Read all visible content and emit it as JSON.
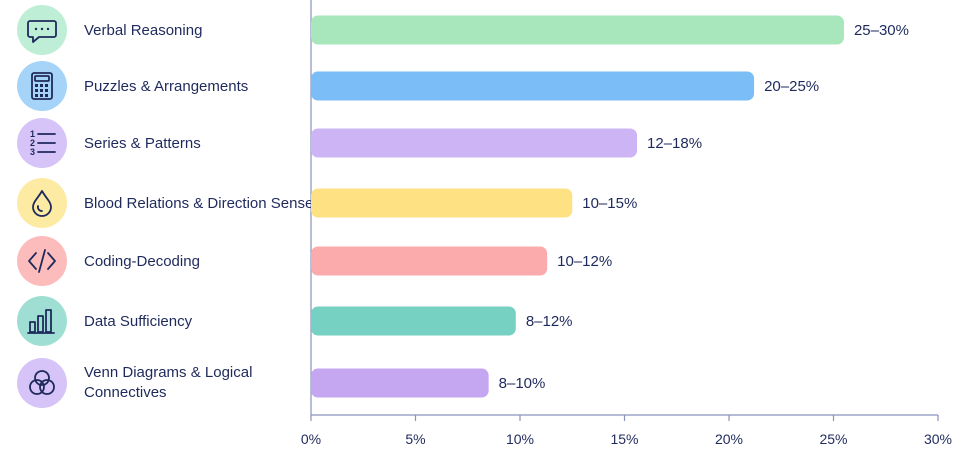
{
  "chart_data": {
    "type": "bar",
    "orientation": "horizontal",
    "title": "",
    "xlabel": "",
    "ylabel": "",
    "xlim": [
      0,
      30
    ],
    "ticks": [
      "0%",
      "5%",
      "10%",
      "15%",
      "20%",
      "25%",
      "30%"
    ],
    "grid": false,
    "legend": "none",
    "categories": [
      "Verbal Reasoning",
      "Puzzles & Arrangements",
      "Series & Patterns",
      "Blood Relations & Direction Sense",
      "Coding-Decoding",
      "Data Sufficiency",
      "Venn Diagrams & Logical Connectives"
    ],
    "ranges": [
      [
        25,
        30
      ],
      [
        20,
        25
      ],
      [
        12,
        18
      ],
      [
        10,
        15
      ],
      [
        10,
        12
      ],
      [
        8,
        12
      ],
      [
        8,
        10
      ]
    ],
    "values": [
      25.5,
      21.2,
      15.6,
      12.5,
      11.3,
      9.8,
      8.5
    ],
    "value_labels": [
      "25–30%",
      "20–25%",
      "12–18%",
      "10–15%",
      "10–12%",
      "8–12%",
      "8–10%"
    ],
    "bar_colors": [
      "#a8e6bc",
      "#7bbdf7",
      "#cdb4f5",
      "#fde182",
      "#fcabad",
      "#76d1c2",
      "#c5a6f0"
    ],
    "icon_colors": [
      "#bfeed6",
      "#a6d4f8",
      "#d6c3f7",
      "#fdeaa3",
      "#fcbcbc",
      "#9fdfd3",
      "#d6c3f7"
    ],
    "icons": [
      "chat-bubble-icon",
      "calculator-icon",
      "numbered-list-icon",
      "drop-icon",
      "code-icon",
      "bar-chart-icon",
      "venn-diagram-icon"
    ]
  }
}
